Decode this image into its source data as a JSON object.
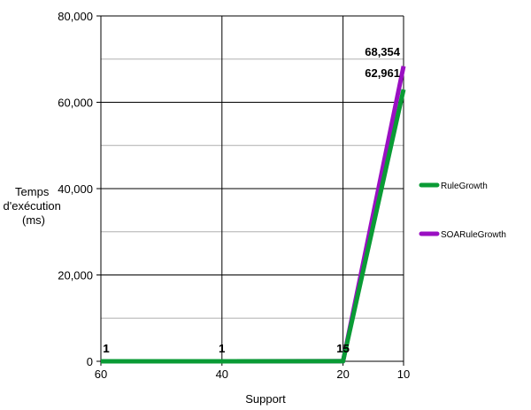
{
  "chart_data": {
    "type": "line",
    "title": "",
    "xlabel": "Support",
    "ylabel_lines": [
      "Temps",
      "d'exécution",
      "(ms)"
    ],
    "x": [
      60,
      40,
      20,
      10
    ],
    "x_ticks": [
      "60",
      "40",
      "20",
      "10"
    ],
    "xlim": [
      60,
      10
    ],
    "ylim": [
      0,
      80000
    ],
    "y_ticks": [
      "0",
      "20,000",
      "40,000",
      "60,000",
      "80,000"
    ],
    "y_tick_values": [
      0,
      20000,
      40000,
      60000,
      80000
    ],
    "minor_grid_values": [
      10000,
      30000,
      50000,
      70000
    ],
    "grid": true,
    "legend_position": "right",
    "series": [
      {
        "name": "RuleGrowth",
        "color": "#0a9b35",
        "values": [
          1,
          1,
          15,
          62961
        ],
        "labels": [
          "1",
          "1",
          "15",
          "62,961"
        ]
      },
      {
        "name": "SOARuleGrowth",
        "color": "#9a0fc2",
        "values": [
          1,
          1,
          15,
          68354
        ],
        "labels": [
          "1",
          "1",
          "15",
          "68,354"
        ]
      }
    ]
  }
}
